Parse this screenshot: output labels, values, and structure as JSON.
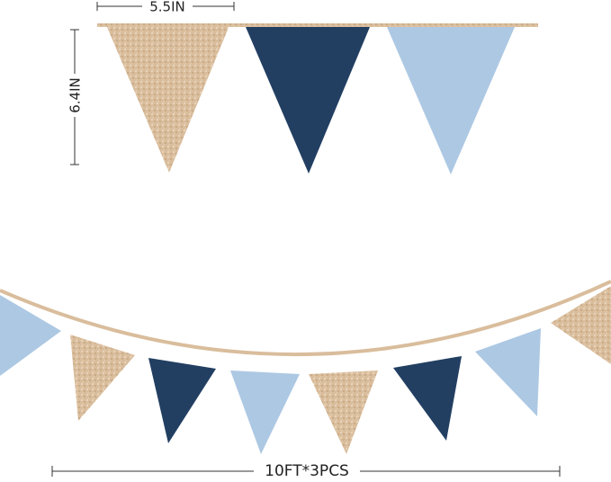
{
  "labels": {
    "width": "5.5IN",
    "height": "6.4IN",
    "length": "10FT*3PCS"
  }
}
